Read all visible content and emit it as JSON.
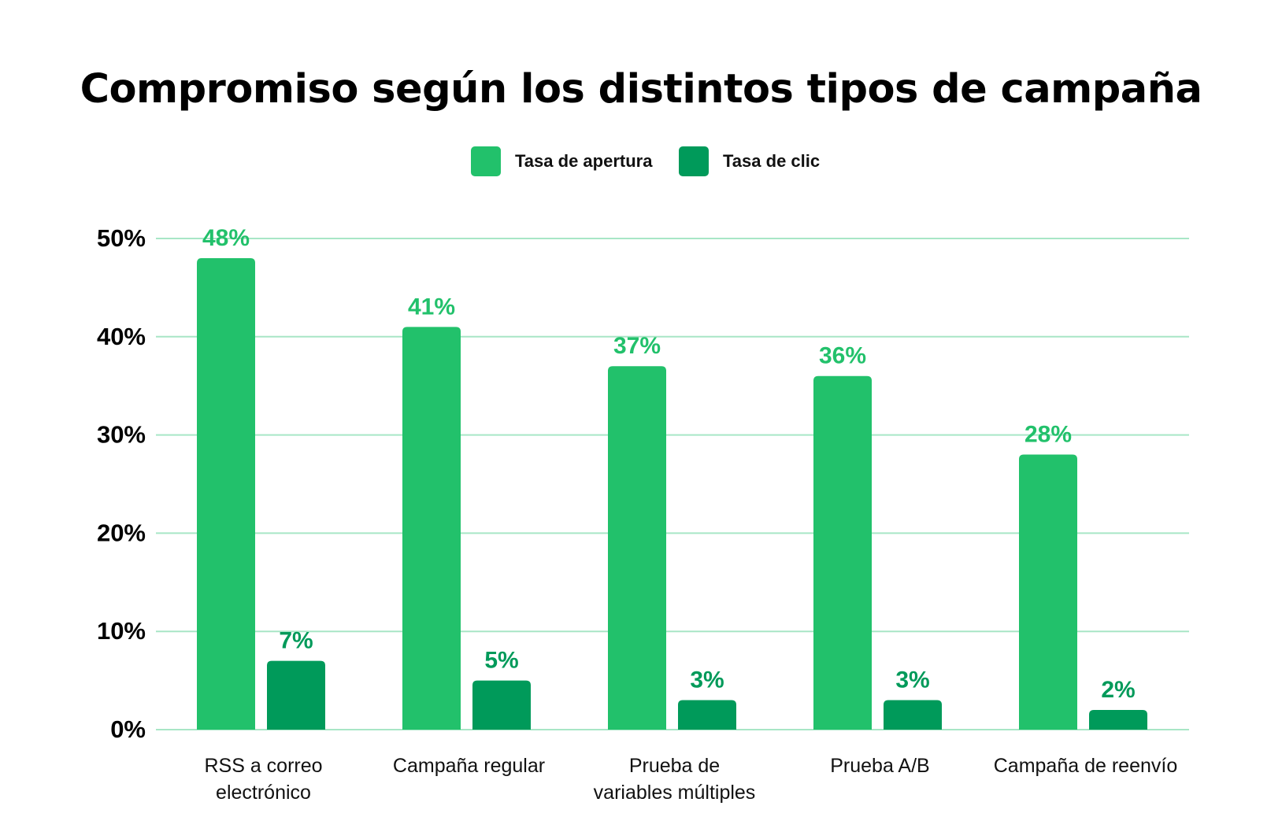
{
  "chart_data": {
    "type": "bar",
    "title": "Compromiso según los distintos tipos de campaña",
    "categories": [
      [
        "RSS a correo",
        "electrónico"
      ],
      [
        "Campaña regular"
      ],
      [
        "Prueba de",
        "variables múltiples"
      ],
      [
        "Prueba A/B"
      ],
      [
        "Campaña de reenvío"
      ]
    ],
    "series": [
      {
        "name": "Tasa de apertura",
        "color": "#22c16b",
        "values": [
          48,
          41,
          37,
          36,
          28
        ],
        "labels": [
          "48%",
          "41%",
          "37%",
          "36%",
          "28%"
        ]
      },
      {
        "name": "Tasa de clic",
        "color": "#009a5a",
        "values": [
          7,
          5,
          3,
          3,
          2
        ],
        "labels": [
          "7%",
          "5%",
          "3%",
          "3%",
          "2%"
        ]
      }
    ],
    "y_ticks": [
      "0%",
      "10%",
      "20%",
      "30%",
      "40%",
      "50%"
    ],
    "y_tick_values": [
      0,
      10,
      20,
      30,
      40,
      50
    ],
    "ylim": [
      0,
      50
    ],
    "grid": true,
    "legend_position": "top-center",
    "gridline_color": "#a8e6c6"
  }
}
